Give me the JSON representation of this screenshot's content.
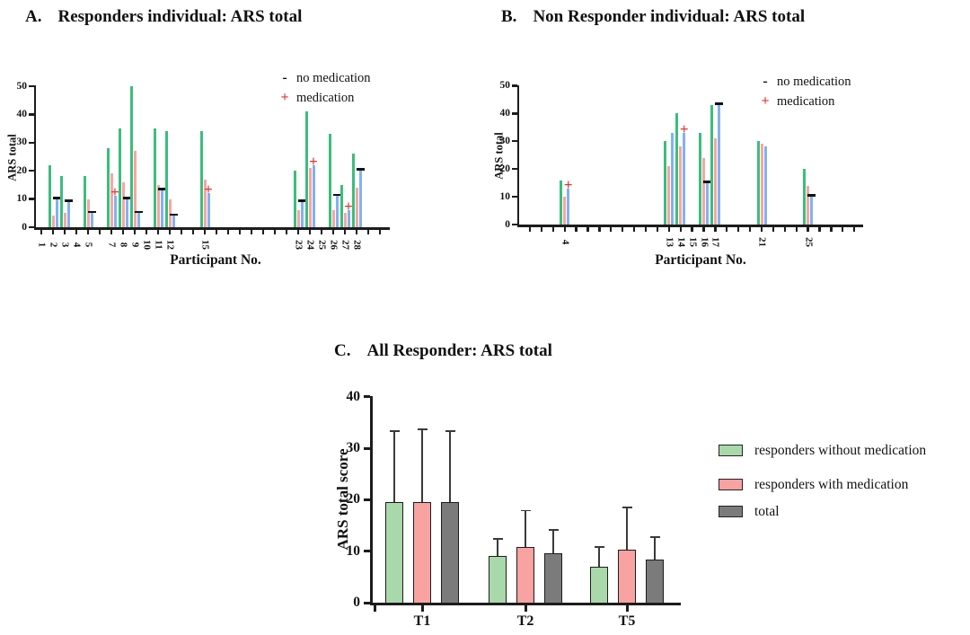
{
  "figure": {
    "panel_a_label": "A.",
    "panel_b_label": "B.",
    "panel_c_label": "C."
  },
  "chart_data": [
    {
      "id": "A",
      "type": "bar",
      "panel_label": "A.",
      "title": "Responders individual: ARS total",
      "xlabel": "Participant No.",
      "ylabel": "ARS total",
      "ylim": [
        0,
        50
      ],
      "yticks": [
        0,
        10,
        20,
        30,
        40,
        50
      ],
      "x_ticks_total": 30,
      "labeled_ticks": [
        1,
        2,
        3,
        4,
        5,
        7,
        8,
        9,
        10,
        11,
        12,
        15,
        23,
        24,
        25,
        26,
        27,
        28
      ],
      "bar_colors": [
        "#3cbd7d",
        "#f7a6a2",
        "#82b2f0"
      ],
      "marker_colors": {
        "dash": "#111111",
        "plus": "#e5342e"
      },
      "groups": [
        {
          "participant": 2,
          "values": [
            22,
            4,
            10
          ],
          "marker": "dash"
        },
        {
          "participant": 3,
          "values": [
            18,
            5,
            9
          ],
          "marker": "dash"
        },
        {
          "participant": 5,
          "values": [
            18,
            10,
            5
          ],
          "marker": "dash"
        },
        {
          "participant": 7,
          "values": [
            28,
            19,
            11
          ],
          "marker": "plus"
        },
        {
          "participant": 8,
          "values": [
            35,
            16,
            10
          ],
          "marker": "dash"
        },
        {
          "participant": 9,
          "values": [
            50,
            27,
            5
          ],
          "marker": "dash"
        },
        {
          "participant": 11,
          "values": [
            35,
            15,
            13
          ],
          "marker": "dash"
        },
        {
          "participant": 12,
          "values": [
            34,
            10,
            4
          ],
          "marker": "dash"
        },
        {
          "participant": 15,
          "values": [
            34,
            17,
            12
          ],
          "marker": "plus"
        },
        {
          "participant": 23,
          "values": [
            20,
            6,
            9
          ],
          "marker": "dash"
        },
        {
          "participant": 24,
          "values": [
            41,
            21,
            22
          ],
          "marker": "plus"
        },
        {
          "participant": 26,
          "values": [
            33,
            6,
            11
          ],
          "marker": "dash"
        },
        {
          "participant": 27,
          "values": [
            15,
            5,
            6
          ],
          "marker": "plus"
        },
        {
          "participant": 28,
          "values": [
            26,
            14,
            20
          ],
          "marker": "dash"
        }
      ],
      "legend": [
        {
          "symbol": "-",
          "label": "no medication"
        },
        {
          "symbol": "+",
          "label": "medication"
        }
      ]
    },
    {
      "id": "B",
      "type": "bar",
      "panel_label": "B.",
      "title": "Non Responder individual: ARS total",
      "xlabel": "Participant No.",
      "ylabel": "ARS total",
      "ylim": [
        0,
        50
      ],
      "yticks": [
        0,
        10,
        20,
        30,
        40,
        50
      ],
      "x_ticks_total": 29,
      "labeled_ticks": [
        4,
        13,
        14,
        15,
        16,
        17,
        21,
        25
      ],
      "bar_colors": [
        "#3cbd7d",
        "#f7a6a2",
        "#82b2f0"
      ],
      "marker_colors": {
        "dash": "#111111",
        "plus": "#e5342e"
      },
      "groups": [
        {
          "participant": 4,
          "values": [
            16,
            10,
            13
          ],
          "marker": "plus"
        },
        {
          "participant": 13,
          "values": [
            30,
            21,
            33
          ],
          "marker": null
        },
        {
          "participant": 14,
          "values": [
            40,
            28,
            33
          ],
          "marker": "plus"
        },
        {
          "participant": 16,
          "values": [
            33,
            24,
            15
          ],
          "marker": "dash"
        },
        {
          "participant": 17,
          "values": [
            43,
            31,
            43
          ],
          "marker": "dash"
        },
        {
          "participant": 21,
          "values": [
            30,
            29,
            28
          ],
          "marker": null
        },
        {
          "participant": 25,
          "values": [
            20,
            14,
            10
          ],
          "marker": "dash"
        }
      ],
      "legend": [
        {
          "symbol": "-",
          "label": "no medication"
        },
        {
          "symbol": "+",
          "label": "medication"
        }
      ]
    },
    {
      "id": "C",
      "type": "bar",
      "panel_label": "C.",
      "title": "All Responder: ARS total",
      "xlabel": "",
      "ylabel": "ARS total score",
      "ylim": [
        0,
        40
      ],
      "yticks": [
        0,
        10,
        20,
        30,
        40
      ],
      "categories": [
        "T1",
        "T2",
        "T5"
      ],
      "series": [
        {
          "name": "responders without medication",
          "color": "#a9d8ab",
          "values": [
            19.5,
            9.0,
            7.0
          ],
          "error_top": [
            33.3,
            12.4,
            10.8
          ]
        },
        {
          "name": "responders with medication",
          "color": "#f9a2a2",
          "values": [
            19.5,
            10.8,
            10.3
          ],
          "error_top": [
            33.7,
            17.9,
            18.5
          ]
        },
        {
          "name": "total",
          "color": "#7b7b7b",
          "values": [
            19.5,
            9.6,
            8.3
          ],
          "error_top": [
            33.4,
            14.1,
            12.7
          ]
        }
      ],
      "legend_position": "right",
      "grid": false
    }
  ]
}
